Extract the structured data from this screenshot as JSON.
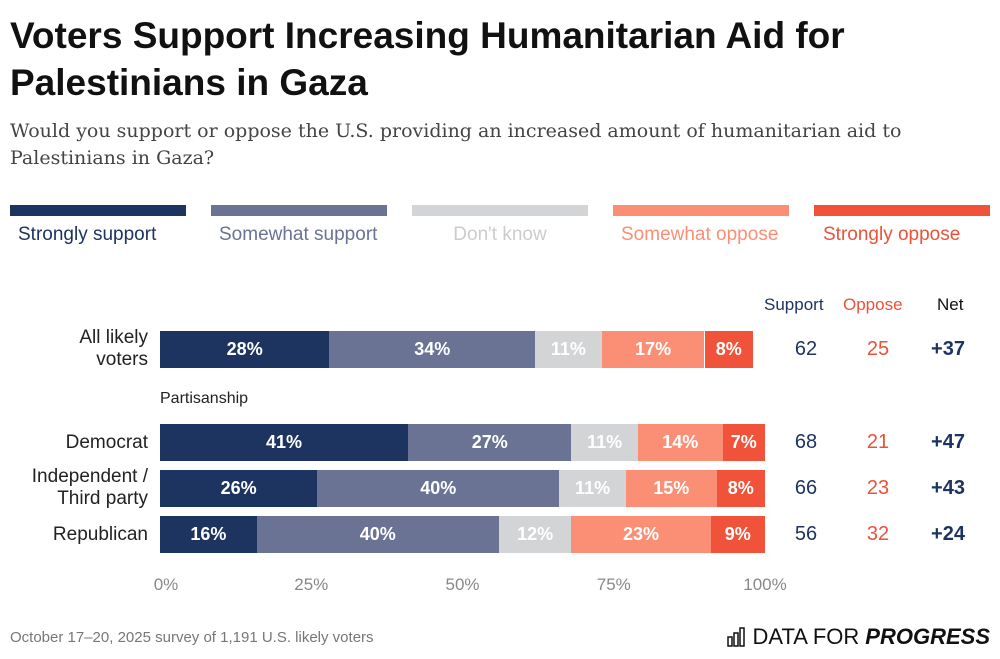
{
  "title": "Voters Support Increasing Humanitarian Aid for Palestinians in Gaza",
  "subtitle": "Would you support or oppose the U.S. providing an increased amount of humanitarian aid to Palestinians in Gaza?",
  "footer": "October 17–20, 2025 survey of 1,191 U.S. likely voters",
  "logo": {
    "light": "DATA FOR",
    "bold": "PROGRESS"
  },
  "chart_data": {
    "type": "bar",
    "orientation": "horizontal",
    "stacked": true,
    "legend_placement": "top",
    "series": [
      {
        "name": "Strongly support",
        "color": "#1d3461",
        "text_color": "#1d3461"
      },
      {
        "name": "Somewhat support",
        "color": "#6b7394",
        "text_color": "#6b7394"
      },
      {
        "name": "Don't know",
        "color": "#d3d4d6",
        "text_color": "#cccccc"
      },
      {
        "name": "Somewhat oppose",
        "color": "#fb8f75",
        "text_color": "#fb8f75"
      },
      {
        "name": "Strongly oppose",
        "color": "#f0533a",
        "text_color": "#e8533a"
      }
    ],
    "group_label": "Partisanship",
    "rows": [
      {
        "label": "All likely voters",
        "values": [
          28,
          34,
          11,
          17,
          8
        ],
        "support": "62",
        "oppose": "25",
        "net": "+37"
      },
      {
        "label": "Democrat",
        "values": [
          41,
          27,
          11,
          14,
          7
        ],
        "support": "68",
        "oppose": "21",
        "net": "+47"
      },
      {
        "label": "Independent / Third party",
        "values": [
          26,
          40,
          11,
          15,
          8
        ],
        "support": "66",
        "oppose": "23",
        "net": "+43"
      },
      {
        "label": "Republican",
        "values": [
          16,
          40,
          12,
          23,
          9
        ],
        "support": "56",
        "oppose": "32",
        "net": "+24"
      }
    ],
    "columns": {
      "support": "Support",
      "oppose": "Oppose",
      "net": "Net"
    },
    "xticks": [
      "0%",
      "25%",
      "50%",
      "75%",
      "100%"
    ],
    "xlim": [
      0,
      100
    ]
  }
}
